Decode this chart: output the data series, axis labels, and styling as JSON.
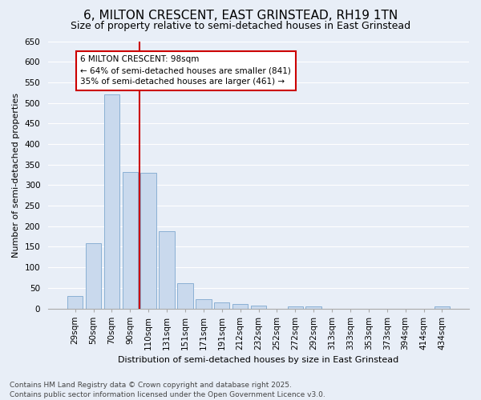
{
  "title": "6, MILTON CRESCENT, EAST GRINSTEAD, RH19 1TN",
  "subtitle": "Size of property relative to semi-detached houses in East Grinstead",
  "xlabel": "Distribution of semi-detached houses by size in East Grinstead",
  "ylabel": "Number of semi-detached properties",
  "categories": [
    "29sqm",
    "50sqm",
    "70sqm",
    "90sqm",
    "110sqm",
    "131sqm",
    "151sqm",
    "171sqm",
    "191sqm",
    "212sqm",
    "232sqm",
    "252sqm",
    "272sqm",
    "292sqm",
    "313sqm",
    "333sqm",
    "353sqm",
    "373sqm",
    "394sqm",
    "414sqm",
    "434sqm"
  ],
  "values": [
    30,
    158,
    520,
    332,
    330,
    188,
    62,
    22,
    14,
    11,
    7,
    0,
    5,
    5,
    0,
    0,
    0,
    0,
    0,
    0,
    5
  ],
  "bar_color": "#c9d9ed",
  "bar_edge_color": "#8ab0d4",
  "vline_x": 3.5,
  "vline_color": "#cc0000",
  "annotation_title": "6 MILTON CRESCENT: 98sqm",
  "annotation_line1": "← 64% of semi-detached houses are smaller (841)",
  "annotation_line2": "35% of semi-detached houses are larger (461) →",
  "annotation_box_color": "#ffffff",
  "annotation_box_edge": "#cc0000",
  "footer1": "Contains HM Land Registry data © Crown copyright and database right 2025.",
  "footer2": "Contains public sector information licensed under the Open Government Licence v3.0.",
  "bg_color": "#e8eef7",
  "grid_color": "#ffffff",
  "ylim": [
    0,
    650
  ],
  "yticks": [
    0,
    50,
    100,
    150,
    200,
    250,
    300,
    350,
    400,
    450,
    500,
    550,
    600,
    650
  ],
  "title_fontsize": 11,
  "subtitle_fontsize": 9,
  "axis_label_fontsize": 8,
  "tick_fontsize": 7.5,
  "footer_fontsize": 6.5,
  "ann_fontsize": 7.5
}
